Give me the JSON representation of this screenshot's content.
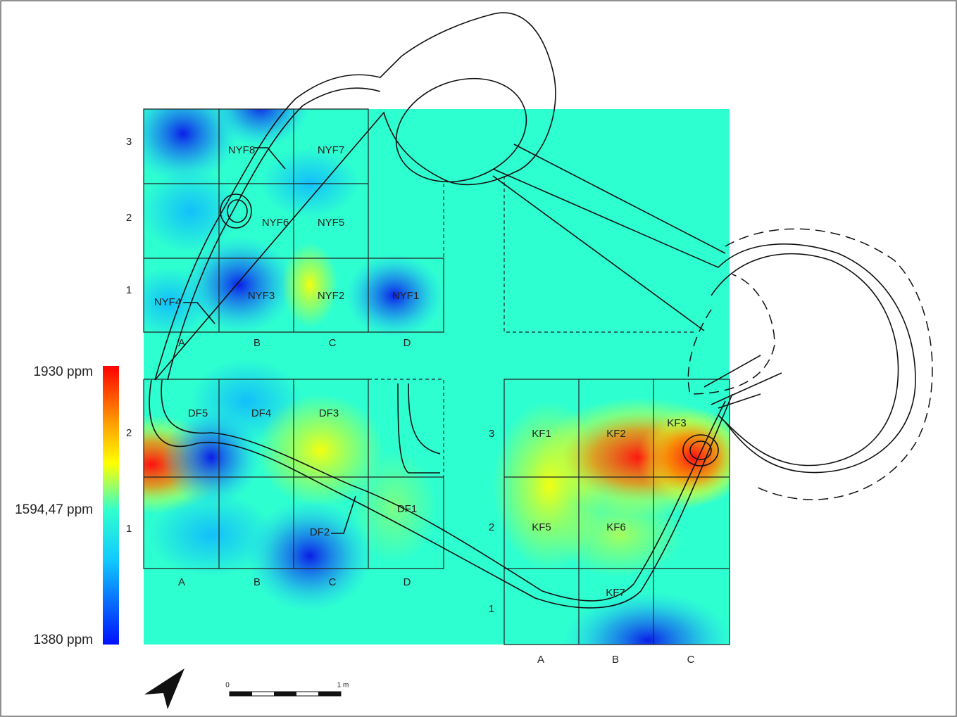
{
  "legend": {
    "labels": [
      "1930 ppm",
      "1594,47 ppm",
      "1380 ppm"
    ]
  },
  "nyf": {
    "rows": [
      "3",
      "2",
      "1"
    ],
    "cols": [
      "A",
      "B",
      "C",
      "D"
    ],
    "cells": [
      "NYF8",
      "NYF7",
      "NYF6",
      "NYF5",
      "NYF4",
      "NYF3",
      "NYF2",
      "NYF1"
    ]
  },
  "df": {
    "rows": [
      "2",
      "1"
    ],
    "cols": [
      "A",
      "B",
      "C",
      "D"
    ],
    "cells": [
      "DF5",
      "DF4",
      "DF3",
      "DF2",
      "DF1"
    ]
  },
  "kf": {
    "rows": [
      "3",
      "2",
      "1"
    ],
    "cols": [
      "A",
      "B",
      "C"
    ],
    "cells": [
      "KF1",
      "KF2",
      "KF3",
      "KF5",
      "KF6",
      "KF7"
    ]
  },
  "scale": {
    "labels": [
      "0",
      "1 m"
    ]
  }
}
